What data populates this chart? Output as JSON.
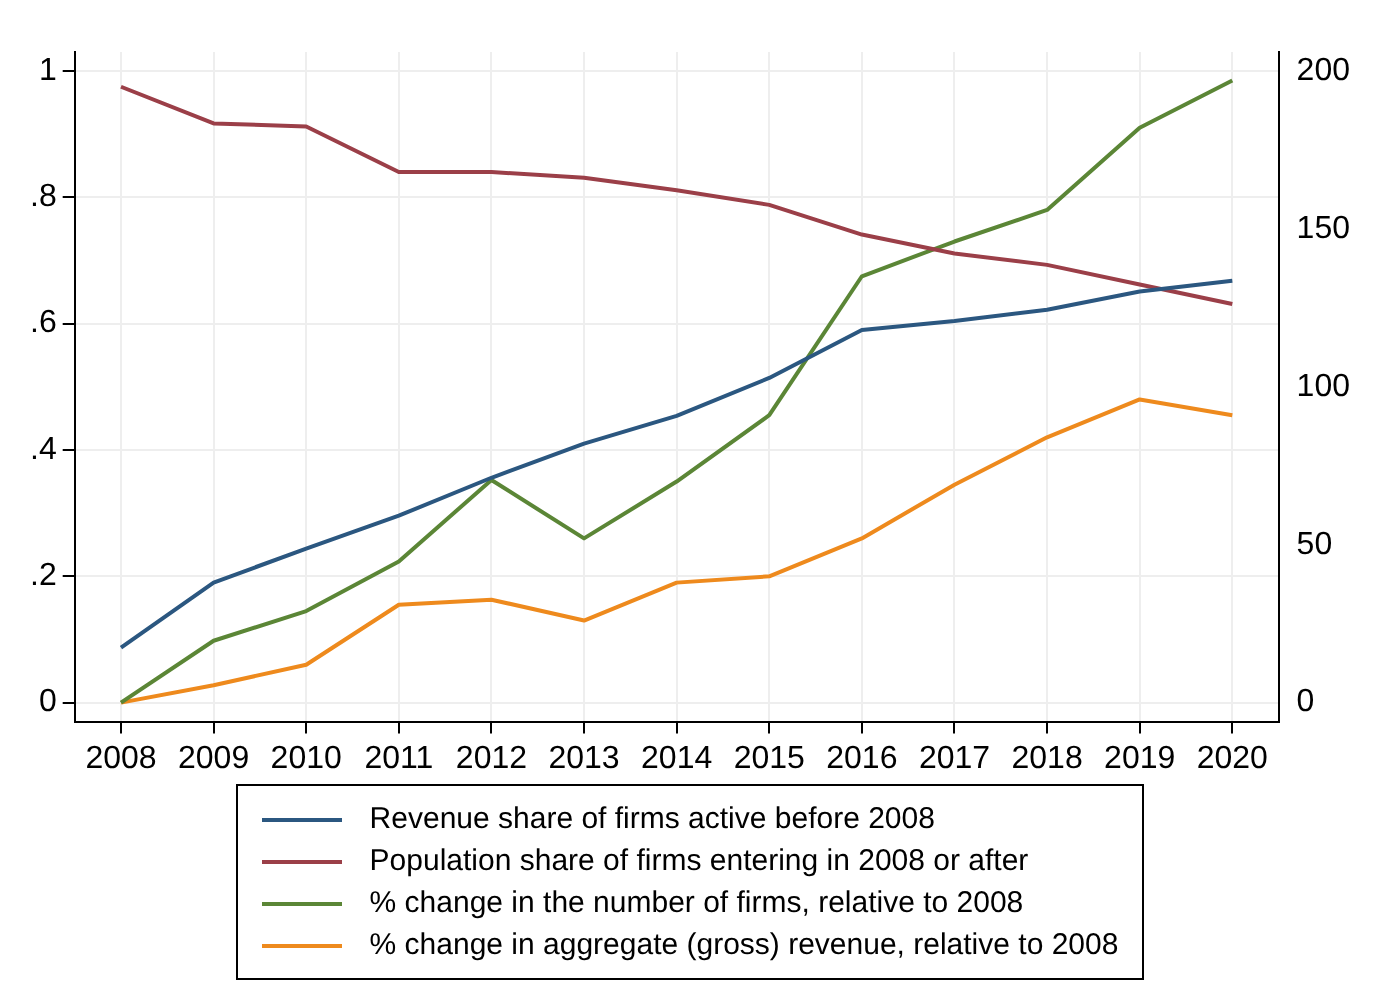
{
  "chart_data": {
    "type": "line",
    "categories": [
      "2008",
      "2009",
      "2010",
      "2011",
      "2012",
      "2013",
      "2014",
      "2015",
      "2016",
      "2017",
      "2018",
      "2019",
      "2020"
    ],
    "series": [
      {
        "name": "Revenue share of firms active before 2008",
        "color": "#2b5780",
        "values": [
          0.087,
          0.19,
          0.244,
          0.296,
          0.356,
          0.41,
          0.454,
          0.514,
          0.59,
          0.604,
          0.622,
          0.651,
          0.668
        ]
      },
      {
        "name": "Population share of firms entering in 2008 or after",
        "color": "#9b3f48",
        "values": [
          0.975,
          0.917,
          0.912,
          0.84,
          0.84,
          0.831,
          0.811,
          0.788,
          0.741,
          0.711,
          0.693,
          0.662,
          0.631
        ]
      },
      {
        "name": "% change in the number of firms, relative to 2008",
        "color": "#5b8636",
        "axis": "y2",
        "values": [
          0,
          19.6,
          29,
          44.7,
          70.5,
          52,
          70,
          91,
          135,
          146,
          156,
          182,
          197
        ]
      },
      {
        "name": "% change in aggregate (gross) revenue, relative to 2008",
        "color": "#ee8a1d",
        "axis": "y2",
        "values": [
          0,
          5.5,
          12,
          31,
          32.6,
          26,
          38,
          40,
          52,
          69,
          84,
          96,
          91
        ]
      }
    ],
    "ylim": [
      -0.03,
      1.03
    ],
    "yticks": [
      {
        "value": 0,
        "label": "0"
      },
      {
        "value": 0.2,
        "label": ".2"
      },
      {
        "value": 0.4,
        "label": ".4"
      },
      {
        "value": 0.6,
        "label": ".6"
      },
      {
        "value": 0.8,
        "label": ".8"
      },
      {
        "value": 1,
        "label": "1"
      }
    ],
    "y2lim": [
      -6,
      206
    ],
    "y2ticks": [
      0,
      50,
      100,
      150,
      200
    ],
    "grid": true,
    "legend": "bottom",
    "marker": "none",
    "line_style": "solid"
  }
}
